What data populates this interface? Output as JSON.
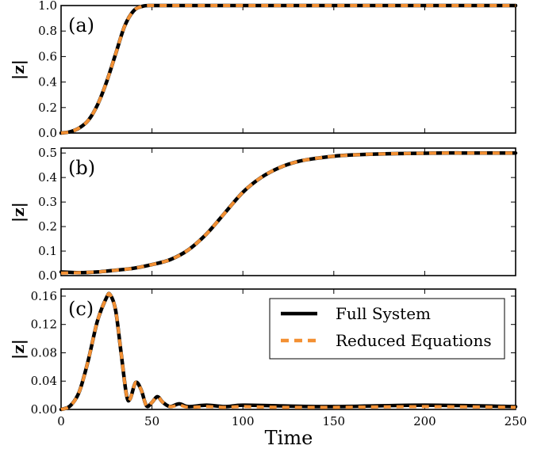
{
  "chart_data": [
    {
      "type": "line",
      "panel": "(a)",
      "ylabel": "|z|",
      "xlim": [
        0,
        250
      ],
      "ylim": [
        0,
        1.0
      ],
      "yticks": [
        "0.0",
        "0.2",
        "0.4",
        "0.6",
        "0.8",
        "1.0"
      ],
      "series": [
        {
          "name": "Full System",
          "color": "#000000",
          "x": [
            0,
            5,
            10,
            15,
            20,
            25,
            30,
            35,
            40,
            45,
            50,
            60,
            80,
            100,
            150,
            200,
            250
          ],
          "values": [
            0.0,
            0.01,
            0.04,
            0.1,
            0.22,
            0.4,
            0.62,
            0.84,
            0.96,
            0.995,
            1.0,
            1.0,
            1.0,
            1.0,
            1.0,
            1.0,
            1.0
          ]
        },
        {
          "name": "Reduced Equations",
          "color": "#f39033",
          "x": [
            0,
            5,
            10,
            15,
            20,
            25,
            30,
            35,
            40,
            45,
            50,
            60,
            80,
            100,
            150,
            200,
            250
          ],
          "values": [
            0.0,
            0.01,
            0.04,
            0.1,
            0.22,
            0.4,
            0.62,
            0.84,
            0.96,
            0.995,
            1.0,
            1.0,
            1.0,
            1.0,
            1.0,
            1.0,
            1.0
          ]
        }
      ]
    },
    {
      "type": "line",
      "panel": "(b)",
      "ylabel": "|z|",
      "xlim": [
        0,
        250
      ],
      "ylim": [
        0,
        0.52
      ],
      "yticks": [
        "0.0",
        "0.1",
        "0.2",
        "0.3",
        "0.4",
        "0.5"
      ],
      "series": [
        {
          "name": "Full System",
          "color": "#000000",
          "x": [
            0,
            10,
            20,
            30,
            40,
            50,
            60,
            70,
            80,
            90,
            100,
            110,
            120,
            130,
            140,
            150,
            160,
            170,
            180,
            190,
            200,
            210,
            220,
            230,
            240,
            250
          ],
          "values": [
            0.015,
            0.012,
            0.015,
            0.022,
            0.03,
            0.045,
            0.065,
            0.105,
            0.17,
            0.255,
            0.34,
            0.4,
            0.44,
            0.465,
            0.478,
            0.487,
            0.492,
            0.495,
            0.497,
            0.498,
            0.499,
            0.5,
            0.5,
            0.5,
            0.5,
            0.5
          ]
        },
        {
          "name": "Reduced Equations",
          "color": "#f39033",
          "x": [
            0,
            10,
            20,
            30,
            40,
            50,
            60,
            70,
            80,
            90,
            100,
            110,
            120,
            130,
            140,
            150,
            160,
            170,
            180,
            190,
            200,
            210,
            220,
            230,
            240,
            250
          ],
          "values": [
            0.01,
            0.012,
            0.015,
            0.022,
            0.03,
            0.045,
            0.065,
            0.105,
            0.17,
            0.255,
            0.34,
            0.4,
            0.44,
            0.465,
            0.478,
            0.487,
            0.492,
            0.495,
            0.497,
            0.498,
            0.499,
            0.5,
            0.5,
            0.5,
            0.5,
            0.5
          ]
        }
      ]
    },
    {
      "type": "line",
      "panel": "(c)",
      "ylabel": "|z|",
      "xlabel": "Time",
      "xlim": [
        0,
        250
      ],
      "ylim": [
        0,
        0.17
      ],
      "yticks": [
        "0.00",
        "0.04",
        "0.08",
        "0.12",
        "0.16"
      ],
      "xticks": [
        "0",
        "50",
        "100",
        "150",
        "200",
        "250"
      ],
      "series": [
        {
          "name": "Full System",
          "color": "#000000",
          "x": [
            0,
            5,
            10,
            15,
            20,
            25,
            27,
            30,
            33,
            36,
            38,
            41,
            44,
            47,
            50,
            53,
            56,
            60,
            65,
            70,
            80,
            90,
            100,
            120,
            150,
            200,
            250
          ],
          "values": [
            0.0,
            0.005,
            0.025,
            0.07,
            0.125,
            0.158,
            0.162,
            0.14,
            0.08,
            0.02,
            0.015,
            0.038,
            0.028,
            0.005,
            0.01,
            0.018,
            0.01,
            0.004,
            0.008,
            0.004,
            0.006,
            0.004,
            0.006,
            0.005,
            0.004,
            0.006,
            0.004
          ]
        },
        {
          "name": "Reduced Equations",
          "color": "#f39033",
          "x": [
            0,
            5,
            10,
            15,
            20,
            25,
            27,
            30,
            33,
            36,
            38,
            41,
            44,
            47,
            50,
            53,
            56,
            60,
            65,
            70,
            80,
            90,
            100,
            120,
            150,
            200,
            250
          ],
          "values": [
            0.0,
            0.005,
            0.025,
            0.07,
            0.125,
            0.158,
            0.162,
            0.14,
            0.08,
            0.02,
            0.015,
            0.038,
            0.028,
            0.005,
            0.01,
            0.018,
            0.01,
            0.004,
            0.006,
            0.003,
            0.004,
            0.003,
            0.004,
            0.003,
            0.003,
            0.004,
            0.003
          ]
        }
      ]
    }
  ],
  "legend": {
    "placement": "top-right of panel (c)",
    "entries": [
      "Full System",
      "Reduced Equations"
    ]
  }
}
